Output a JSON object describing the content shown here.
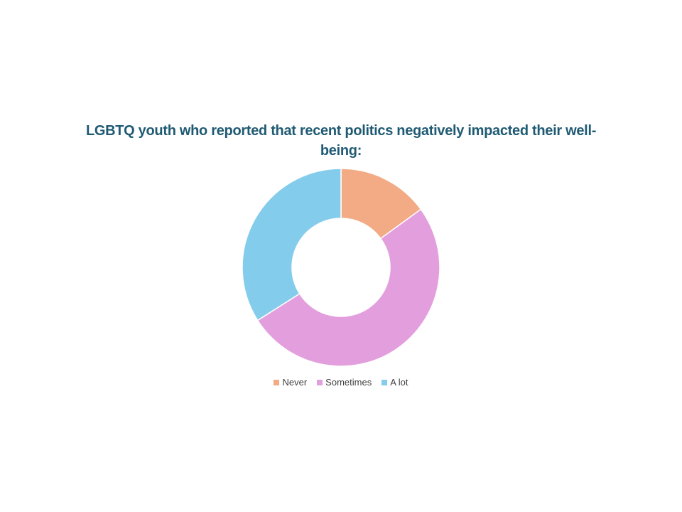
{
  "chart_data": {
    "type": "pie",
    "variant": "donut",
    "title": "LGBTQ youth who reported that recent politics negatively impacted their well-being:",
    "categories": [
      "Never",
      "Sometimes",
      "A lot"
    ],
    "values": [
      15,
      51,
      34
    ],
    "colors": [
      "#f2ab85",
      "#e39fdd",
      "#84cceb"
    ],
    "legend_position": "bottom"
  }
}
